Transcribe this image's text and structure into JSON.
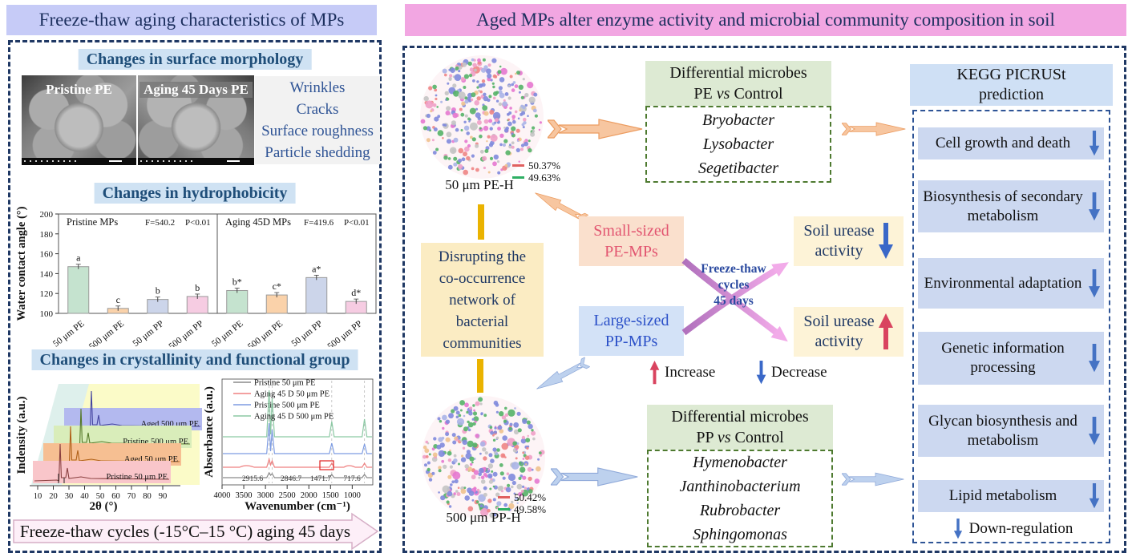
{
  "colors": {
    "left_title_bg": "#c6cbf7",
    "right_title_bg": "#f2a6e2",
    "title_text": "#1c2f5e",
    "heading_bg": "#cfe2f3",
    "heading_text": "#1f4e79",
    "dashed_border": "#1f3864",
    "green_header_bg": "#ddead3",
    "green_dash": "#4e7a30",
    "blue_dash": "#2e5496",
    "kegg_bg": "#ccd8f0",
    "yellow_box_bg": "#fbecc3",
    "gold_bar": "#eab300",
    "small_box_bg": "#fae0cd",
    "small_box_text": "#e25570",
    "large_box_bg": "#d3e2f7",
    "large_box_text": "#2b50c8",
    "urease_bg": "#fdf3d7",
    "urease_text": "#1f3864",
    "orange_arrow": "#f7c6a0",
    "orange_arrow_edge": "#ec9c60",
    "blue_arrow": "#bdd1ee",
    "blue_arrow_edge": "#8fa9d9",
    "up_arrow_red": "#d9435f",
    "down_arrow_blue": "#3a68c8",
    "cross_arrow_purple": "#b070bc",
    "cross_arrow_pink": "#f2abe9",
    "pink_bottom_arrow_bg": "#fdeff8"
  },
  "left": {
    "title": "Freeze-thaw aging characteristics of MPs",
    "headings": {
      "morphology": "Changes in surface morphology",
      "hydrophobicity": "Changes in hydrophobicity",
      "crystallinity": "Changes in crystallinity and functional group"
    },
    "sem": [
      {
        "label": "Pristine PE"
      },
      {
        "label": "Aging 45 Days PE"
      }
    ],
    "features": [
      "Wrinkles",
      "Cracks",
      "Surface roughness",
      "Particle shedding"
    ],
    "bottom_arrow": "Freeze-thaw cycles (-15°C–15 °C) aging 45 days"
  },
  "right": {
    "title": "Aged MPs alter enzyme activity and microbial community composition in soil",
    "networks": [
      {
        "label": "50 μm PE-H",
        "legend": [
          {
            "color": "#e06060",
            "value": "50.37%"
          },
          {
            "color": "#2eaf64",
            "value": "49.63%"
          }
        ]
      },
      {
        "label": "500 μm PP-H",
        "legend": [
          {
            "color": "#e06060",
            "value": "50.42%"
          },
          {
            "color": "#2eaf64",
            "value": "49.58%"
          }
        ]
      }
    ],
    "pe_box": {
      "line1": "Differential microbes",
      "group": "PE",
      "vs": "vs",
      "control": "Control",
      "microbes": [
        "Bryobacter",
        "Lysobacter",
        "Segetibacter"
      ]
    },
    "pp_box": {
      "line1": "Differential microbes",
      "group": "PP",
      "vs": "vs",
      "control": "Control",
      "microbes": [
        "Hymenobacter",
        "Janthinobacterium",
        "Rubrobacter",
        "Sphingomonas"
      ]
    },
    "kegg": {
      "title1": "KEGG PICRUSt",
      "title2": "prediction",
      "items": [
        "Cell growth and death",
        "Biosynthesis of secondary metabolism",
        "Environmental adaptation",
        "Genetic information processing",
        "Glycan biosynthesis and metabolism",
        "Lipid metabolism"
      ],
      "down_legend": "Down-regulation"
    },
    "disrupt": {
      "lines": [
        "Disrupting  the",
        "co-occurrence",
        "network of",
        "bacterial",
        "communities"
      ]
    },
    "small_box": {
      "line1": "Small-sized",
      "line2": "PE-MPs"
    },
    "large_box": {
      "line1": "Large-sized",
      "line2": "PP-MPs"
    },
    "freeze": {
      "lines": [
        "Freeze-thaw",
        "cycles",
        "45 days"
      ]
    },
    "urease_down": {
      "line1": "Soil urease",
      "line2": "activity"
    },
    "urease_up": {
      "line1": "Soil urease",
      "line2": "activity"
    },
    "legend": {
      "increase": "Increase",
      "decrease": "Decrease"
    }
  },
  "chart_data": [
    {
      "type": "bar",
      "title": "Changes in hydrophobicity",
      "ylabel": "Water contact angle (°)",
      "ylim": [
        100,
        200
      ],
      "yticks": [
        100,
        120,
        140,
        160,
        180,
        200
      ],
      "categories": [
        "50 μm PE",
        "500 μm PE",
        "50 μm PP",
        "500 μm PP"
      ],
      "bar_colors": [
        "#c5e3cf",
        "#fad2aa",
        "#ccd5ea",
        "#f6cce2"
      ],
      "panels": [
        {
          "label": "Pristine MPs",
          "f_stat": "F=540.2",
          "p_value": "P<0.01",
          "values": [
            147,
            105,
            114,
            117
          ],
          "sig_letters": [
            "a",
            "c",
            "b",
            "b"
          ]
        },
        {
          "label": "Aging 45D MPs",
          "f_stat": "F=419.6",
          "p_value": "P<0.01",
          "values": [
            123,
            118.5,
            136,
            112
          ],
          "sig_letters": [
            "b*",
            "c*",
            "a*",
            "d*"
          ]
        }
      ]
    },
    {
      "type": "line",
      "xlabel": "2θ (°)",
      "ylabel": "Indensity (a.u.)",
      "xticks": [
        10,
        20,
        30,
        40,
        50,
        60,
        70,
        80,
        90
      ],
      "peak_positions_2theta": [
        21.4,
        23.8
      ],
      "series": [
        {
          "name": "Pristine 50 μm PE",
          "band_color": "#f9c6ca",
          "line_color": "#8a4040"
        },
        {
          "name": "Aged 50 μm PE",
          "band_color": "#f6bf92",
          "line_color": "#b06018"
        },
        {
          "name": "Pristine 500 μm PE",
          "band_color": "#d9edba",
          "line_color": "#557828"
        },
        {
          "name": "Aged 500 μm PE",
          "band_color": "#b3b9ef",
          "line_color": "#4444a0"
        }
      ]
    },
    {
      "type": "line",
      "xlabel": "Wavenumber (cm⁻¹)",
      "ylabel": "Absorbance (a.u.)",
      "xticks": [
        4000,
        3500,
        3000,
        2500,
        2000,
        1500,
        1000
      ],
      "peak_labels": [
        "2915.6",
        "2846.7",
        "1471.7",
        "717.6"
      ],
      "peak_wavenumbers": [
        2915.6,
        2846.7,
        1471.7,
        717.6
      ],
      "series": [
        {
          "name": "Pristine 50 μm PE",
          "color": "#8a8a8a",
          "amps": [
            6,
            5,
            4,
            4
          ]
        },
        {
          "name": "Aging 45 D 50 μm PE",
          "color": "#ef8080",
          "amps": [
            10,
            8,
            5,
            5
          ]
        },
        {
          "name": "Pristine 500 μm PE",
          "color": "#7e9ce2",
          "amps": [
            38,
            30,
            13,
            12
          ]
        },
        {
          "name": "Aging 45 D 500 μm PE",
          "color": "#8cc9a4",
          "amps": [
            58,
            48,
            19,
            22
          ]
        }
      ]
    }
  ]
}
